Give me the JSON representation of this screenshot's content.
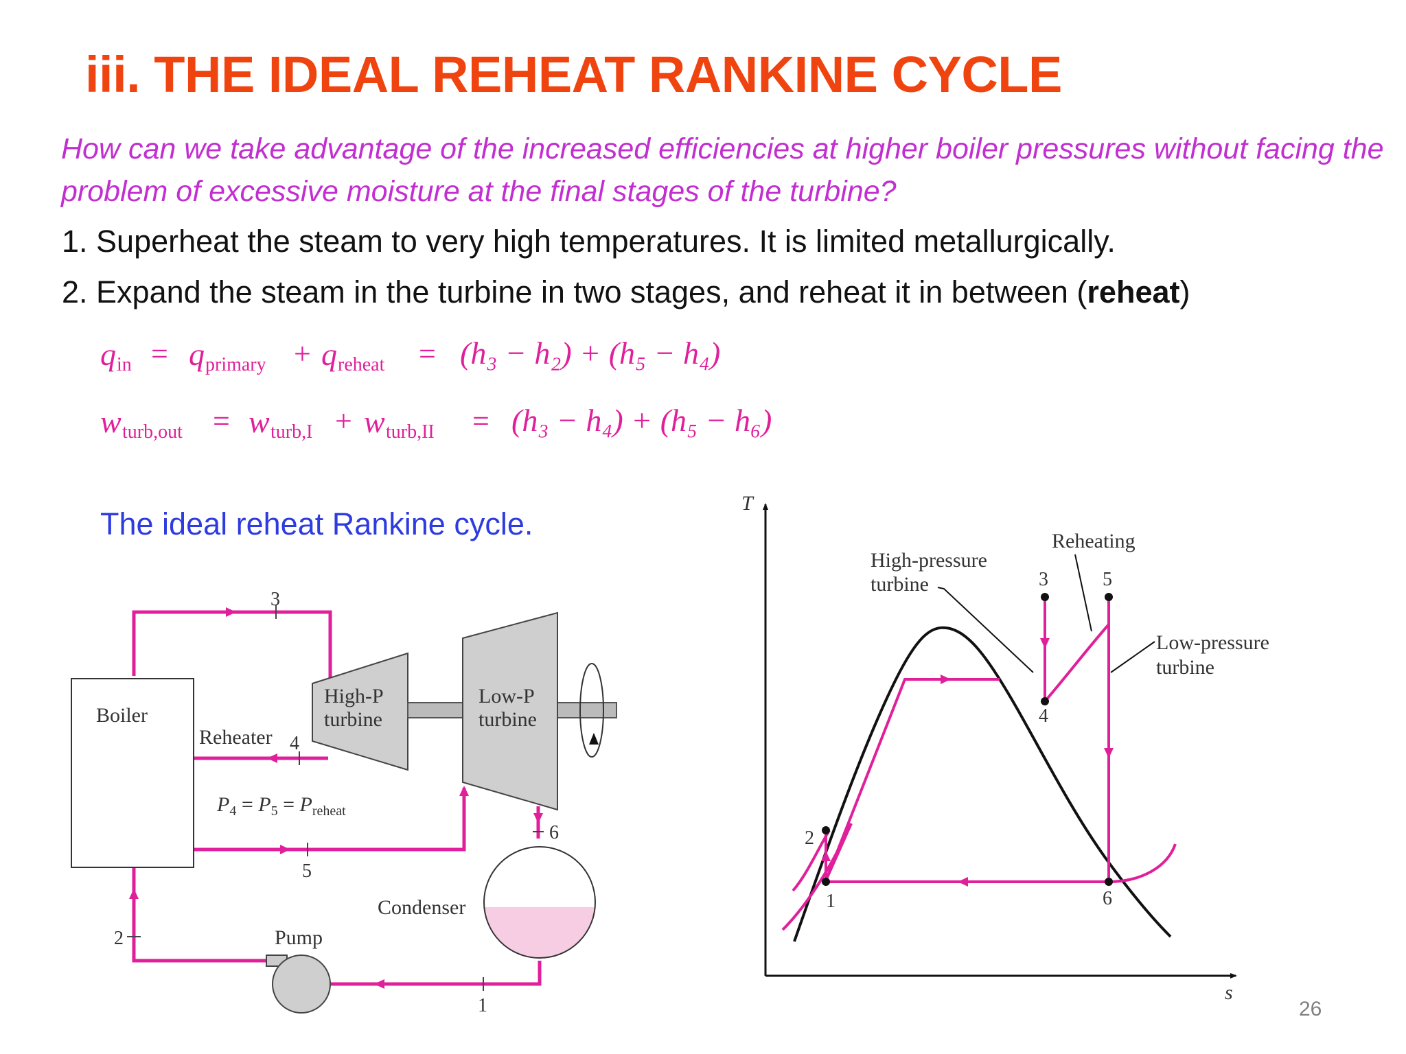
{
  "slide": {
    "title": "iii. THE IDEAL REHEAT RANKINE CYCLE",
    "question": "How can we take advantage of the increased efficiencies at higher boiler pressures without facing the problem of excessive moisture at the final stages of the turbine?",
    "item1": "1. Superheat the steam to very high temperatures. It is limited metallurgically.",
    "item2_pre": "2. Expand the steam in the turbine in two stages, and reheat it in between (",
    "item2_bold": "reheat",
    "item2_post": ")",
    "caption": "The ideal reheat Rankine cycle.",
    "page_number": "26"
  },
  "equations": {
    "qin": {
      "q1": "q",
      "s1": "in",
      "eq1": "=",
      "q2": "q",
      "s2": "primary",
      "plus1": "+",
      "q3": "q",
      "s3": "reheat",
      "eq2": "=",
      "rhs": "(h₃ − h₂) + (h₅ − h₄)"
    },
    "wturb": {
      "w1": "w",
      "s1": "turb,out",
      "eq1": "=",
      "w2": "w",
      "s2": "turb,I",
      "plus1": "+",
      "w3": "w",
      "s3": "turb,II",
      "eq2": "=",
      "rhs": "(h₃ − h₄) + (h₅ − h₆)"
    },
    "color": "#e0209a"
  },
  "schematic": {
    "boiler": "Boiler",
    "reheater": "Reheater",
    "hp_turbine": [
      "High-P",
      "turbine"
    ],
    "lp_turbine": [
      "Low-P",
      "turbine"
    ],
    "condenser": "Condenser",
    "pump": "Pump",
    "pressure": {
      "p4": "P",
      "s4": "4",
      "eq1": " = ",
      "p5": "P",
      "s5": "5",
      "eq2": " = ",
      "pr": "P",
      "sr": "reheat"
    },
    "states": [
      "1",
      "2",
      "3",
      "4",
      "5",
      "6"
    ],
    "line_color": "#e0209a"
  },
  "ts_diagram": {
    "axis_t": "T",
    "axis_s": "s",
    "hp_label": [
      "High-pressure",
      "turbine"
    ],
    "lp_label": [
      "Low-pressure",
      "turbine"
    ],
    "reheating_label": "Reheating",
    "states": [
      "1",
      "2",
      "3",
      "4",
      "5",
      "6"
    ]
  }
}
